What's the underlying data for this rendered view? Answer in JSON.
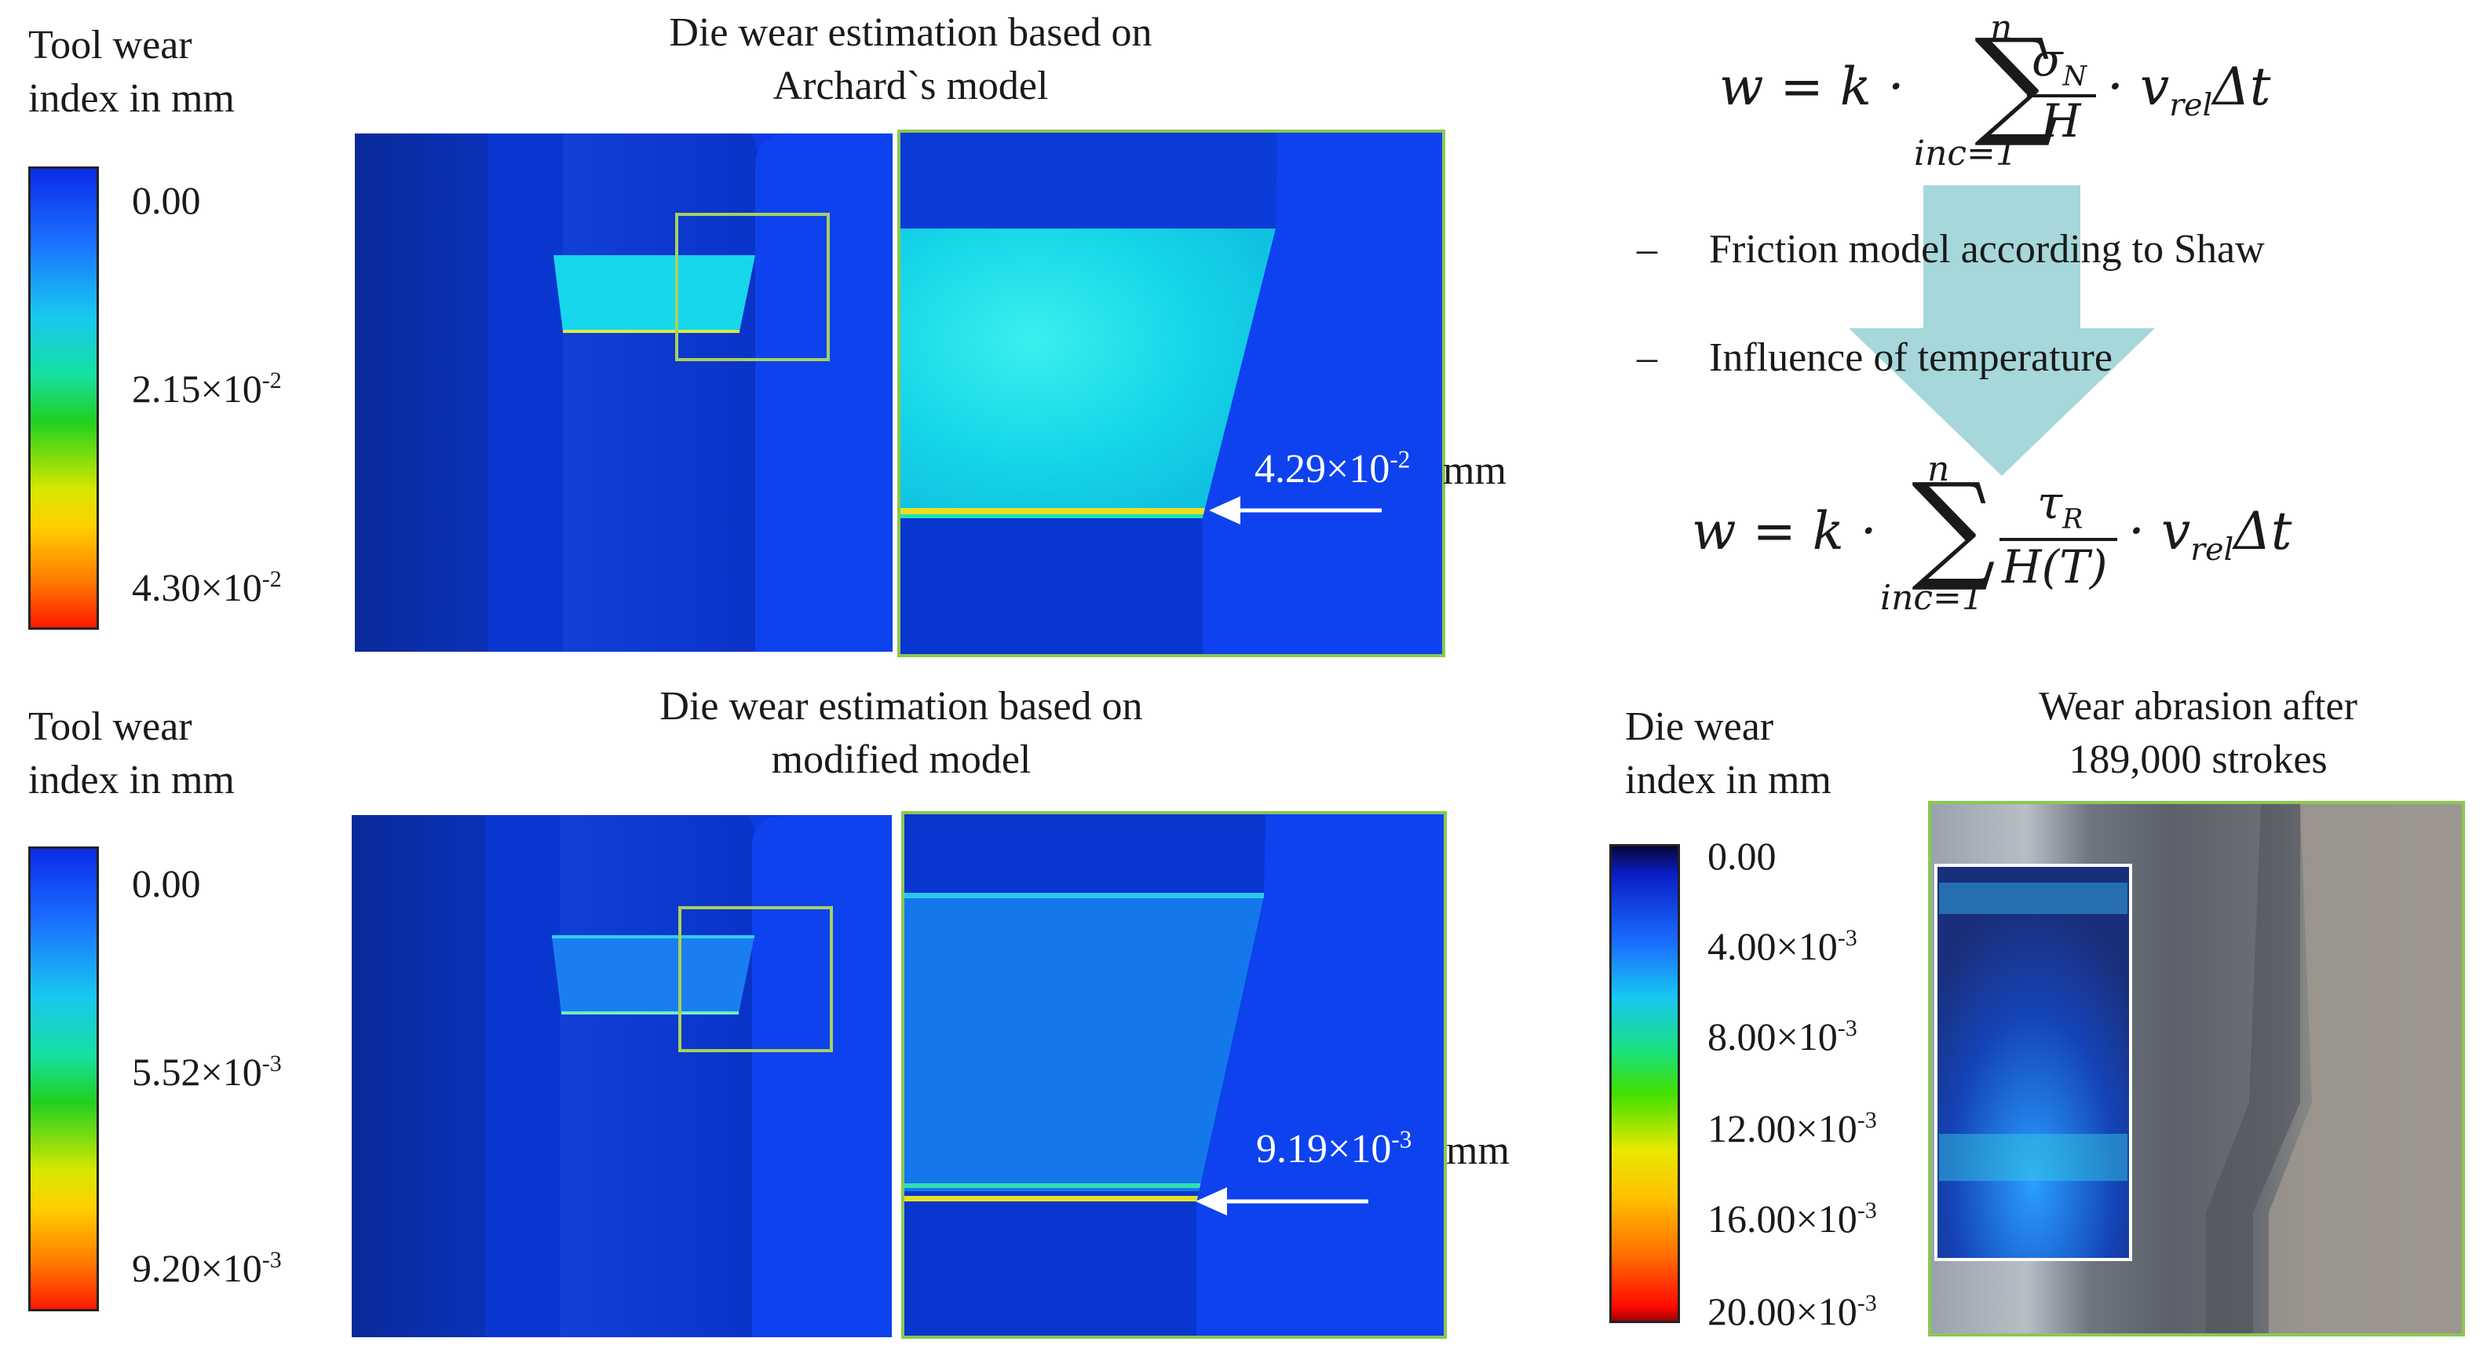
{
  "top": {
    "legend_title_line1": "Tool wear",
    "legend_title_line2": "index in mm",
    "legend_ticks": [
      "0.00",
      "2.15×10",
      "-2",
      "4.30×10",
      "-2"
    ],
    "title_line1": "Die wear estimation based on",
    "title_line2": "Archard`s model",
    "callout_value": "4.29×10",
    "callout_exp": "-2",
    "callout_unit": "mm"
  },
  "bottom": {
    "legend_title_line1": "Tool wear",
    "legend_title_line2": "index in mm",
    "legend_ticks": [
      "0.00",
      "5.52×10",
      "-3",
      "9.20×10",
      "-3"
    ],
    "title_line1": "Die wear estimation based on",
    "title_line2": "modified model",
    "callout_value": "9.19×10",
    "callout_exp": "-3",
    "callout_unit": "mm"
  },
  "equations": {
    "eq1_lhs": "w = k ·",
    "eq1_upper": "n",
    "eq1_lower": "inc=1",
    "eq1_num": "σ",
    "eq1_num_sub": "N",
    "eq1_den": "H",
    "eq1_tail": "· v",
    "eq1_tail_sub": "rel",
    "eq1_end": "Δt",
    "eq2_lhs": "w = k ·",
    "eq2_upper": "n",
    "eq2_lower": "inc=1",
    "eq2_num": "τ",
    "eq2_num_sub": "R",
    "eq2_den": "H(T)",
    "eq2_tail": "· v",
    "eq2_tail_sub": "rel",
    "eq2_end": "Δt",
    "bullet1": "Friction model according to Shaw",
    "bullet2": "Influence of temperature",
    "dash": "–"
  },
  "die_legend": {
    "title_line1": "Die wear",
    "title_line2": "index in mm",
    "ticks": [
      {
        "base": "0.00",
        "exp": ""
      },
      {
        "base": "4.00×10",
        "exp": "-3"
      },
      {
        "base": "8.00×10",
        "exp": "-3"
      },
      {
        "base": "12.00×10",
        "exp": "-3"
      },
      {
        "base": "16.00×10",
        "exp": "-3"
      },
      {
        "base": "20.00×10",
        "exp": "-3"
      }
    ]
  },
  "photo": {
    "title_line1": "Wear abrasion after",
    "title_line2": "189,000 strokes"
  },
  "colors": {
    "die_blue": "#0a3ce6",
    "frame_green": "#8ac850",
    "arrow_teal": "#a6d7da"
  }
}
